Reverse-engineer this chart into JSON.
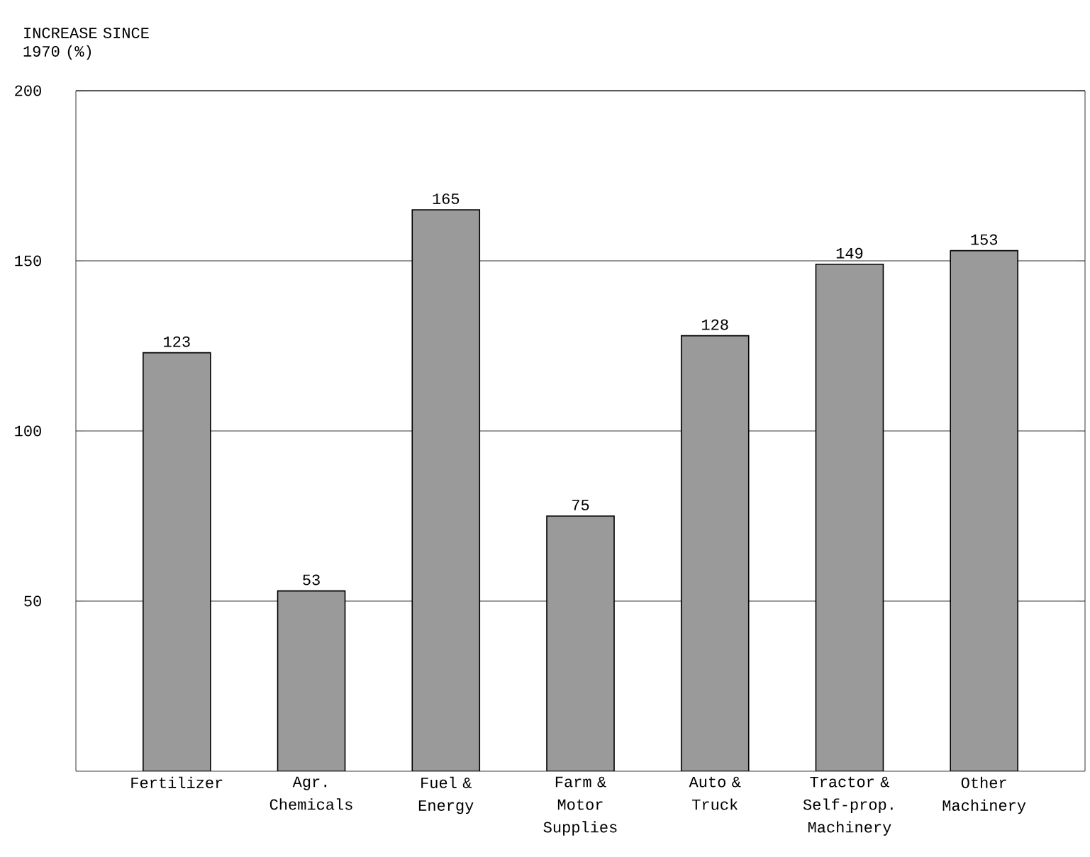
{
  "chart_data": {
    "type": "bar",
    "ylabel": "INCREASE SINCE 1970 (%)",
    "categories": [
      "Fertilizer",
      "Agr. Chemicals",
      "Fuel & Energy",
      "Farm & Motor Supplies",
      "Auto & Truck",
      "Tractor & Self-prop. Machinery",
      "Other Machinery"
    ],
    "values": [
      123,
      53,
      165,
      75,
      128,
      149,
      153
    ],
    "color": "#9a9a9a",
    "ylim": [
      0,
      200
    ],
    "yticks": [
      50,
      100,
      150,
      200
    ],
    "grid": "y",
    "data_labels": true
  }
}
